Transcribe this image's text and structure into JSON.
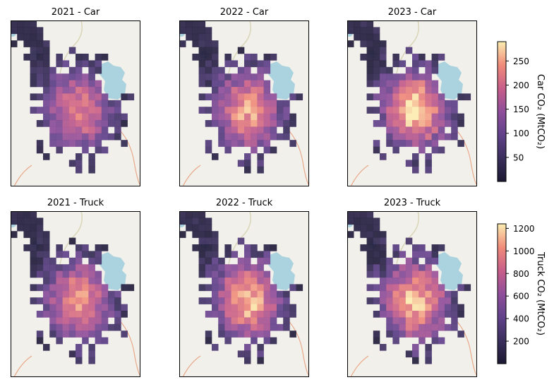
{
  "chart_data": [
    {
      "type": "heatmap",
      "title": "2021 - Car",
      "year": "2021",
      "mode": "Car",
      "colorbar": "car",
      "intensity": 0.82
    },
    {
      "type": "heatmap",
      "title": "2022 - Car",
      "year": "2022",
      "mode": "Car",
      "colorbar": "car",
      "intensity": 0.9
    },
    {
      "type": "heatmap",
      "title": "2023 - Car",
      "year": "2023",
      "mode": "Car",
      "colorbar": "car",
      "intensity": 1.0
    },
    {
      "type": "heatmap",
      "title": "2021 - Truck",
      "year": "2021",
      "mode": "Truck",
      "colorbar": "truck",
      "intensity": 0.88
    },
    {
      "type": "heatmap",
      "title": "2022 - Truck",
      "year": "2022",
      "mode": "Truck",
      "colorbar": "truck",
      "intensity": 0.97
    },
    {
      "type": "heatmap",
      "title": "2023 - Truck",
      "year": "2023",
      "mode": "Truck",
      "colorbar": "truck",
      "intensity": 0.96
    }
  ],
  "colorbars": {
    "car": {
      "label": "Car CO₂ (MtCO₂)",
      "min": 0,
      "max": 290,
      "ticks": [
        50,
        100,
        150,
        200,
        250
      ]
    },
    "truck": {
      "label": "Truck CO₂ (MtCO₂)",
      "min": 0,
      "max": 1240,
      "ticks": [
        200,
        400,
        600,
        800,
        1000,
        1200
      ]
    }
  },
  "colormap": "magma",
  "colors": {
    "basemap": "#f2f0ea",
    "water": "#aad3df"
  }
}
